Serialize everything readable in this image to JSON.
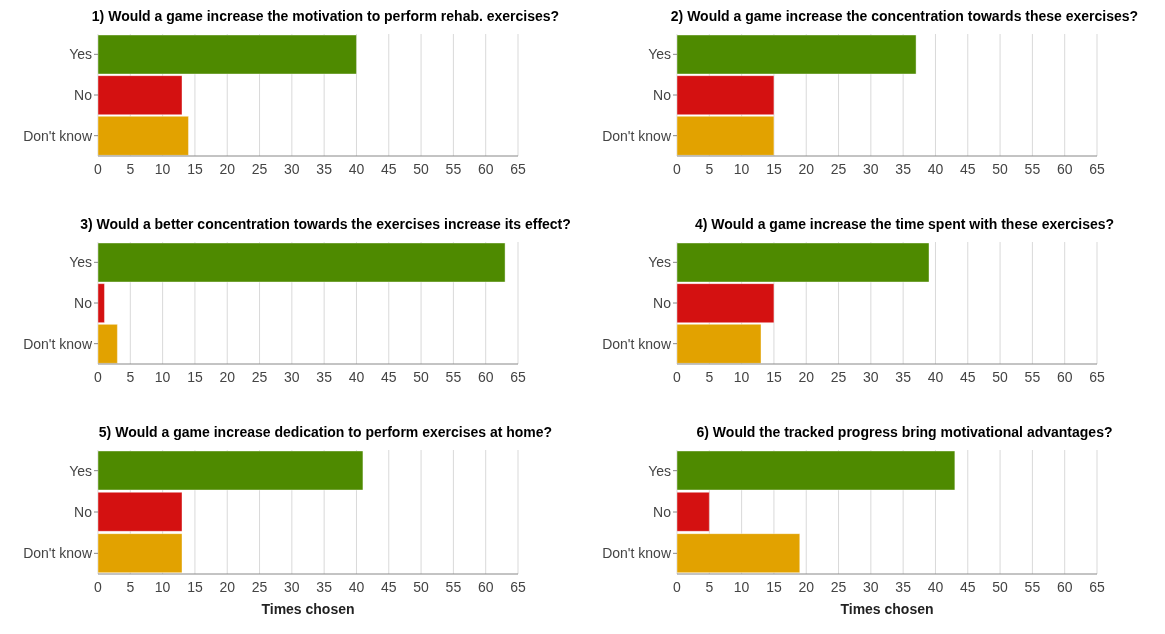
{
  "chart_data": [
    {
      "type": "bar",
      "orientation": "horizontal",
      "title": "1) Would a game increase the motivation to perform rehab. exercises?",
      "categories": [
        "Yes",
        "No",
        "Don't know"
      ],
      "values": [
        40,
        13,
        14
      ],
      "colors": [
        "#4e8a00",
        "#d41111",
        "#e2a200"
      ],
      "xlim": [
        0,
        65
      ],
      "xticks": [
        0,
        5,
        10,
        15,
        20,
        25,
        30,
        35,
        40,
        45,
        50,
        55,
        60,
        65
      ],
      "grid": "x"
    },
    {
      "type": "bar",
      "orientation": "horizontal",
      "title": "2) Would a game increase the concentration towards these exercises?",
      "categories": [
        "Yes",
        "No",
        "Don't know"
      ],
      "values": [
        37,
        15,
        15
      ],
      "colors": [
        "#4e8a00",
        "#d41111",
        "#e2a200"
      ],
      "xlim": [
        0,
        65
      ],
      "xticks": [
        0,
        5,
        10,
        15,
        20,
        25,
        30,
        35,
        40,
        45,
        50,
        55,
        60,
        65
      ],
      "grid": "x"
    },
    {
      "type": "bar",
      "orientation": "horizontal",
      "title": "3) Would a better concentration towards the exercises increase its effect?",
      "categories": [
        "Yes",
        "No",
        "Don't know"
      ],
      "values": [
        63,
        1,
        3
      ],
      "colors": [
        "#4e8a00",
        "#d41111",
        "#e2a200"
      ],
      "xlim": [
        0,
        65
      ],
      "xticks": [
        0,
        5,
        10,
        15,
        20,
        25,
        30,
        35,
        40,
        45,
        50,
        55,
        60,
        65
      ],
      "grid": "x"
    },
    {
      "type": "bar",
      "orientation": "horizontal",
      "title": "4) Would a game increase the time spent with these exercises?",
      "categories": [
        "Yes",
        "No",
        "Don't know"
      ],
      "values": [
        39,
        15,
        13
      ],
      "colors": [
        "#4e8a00",
        "#d41111",
        "#e2a200"
      ],
      "xlim": [
        0,
        65
      ],
      "xticks": [
        0,
        5,
        10,
        15,
        20,
        25,
        30,
        35,
        40,
        45,
        50,
        55,
        60,
        65
      ],
      "grid": "x"
    },
    {
      "type": "bar",
      "orientation": "horizontal",
      "title": "5) Would a game increase dedication to perform exercises at home?",
      "categories": [
        "Yes",
        "No",
        "Don't know"
      ],
      "values": [
        41,
        13,
        13
      ],
      "colors": [
        "#4e8a00",
        "#d41111",
        "#e2a200"
      ],
      "xlim": [
        0,
        65
      ],
      "xticks": [
        0,
        5,
        10,
        15,
        20,
        25,
        30,
        35,
        40,
        45,
        50,
        55,
        60,
        65
      ],
      "grid": "x",
      "xlabel": "Times chosen"
    },
    {
      "type": "bar",
      "orientation": "horizontal",
      "title": "6) Would the tracked progress bring motivational advantages?",
      "categories": [
        "Yes",
        "No",
        "Don't know"
      ],
      "values": [
        43,
        5,
        19
      ],
      "colors": [
        "#4e8a00",
        "#d41111",
        "#e2a200"
      ],
      "xlim": [
        0,
        65
      ],
      "xticks": [
        0,
        5,
        10,
        15,
        20,
        25,
        30,
        35,
        40,
        45,
        50,
        55,
        60,
        65
      ],
      "grid": "x",
      "xlabel": "Times chosen"
    }
  ]
}
